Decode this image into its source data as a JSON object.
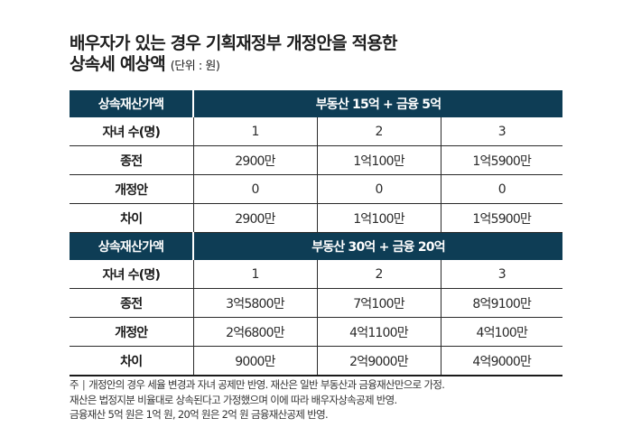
{
  "title": {
    "line1": "배우자가 있는 경우 기획재정부 개정안을 적용한",
    "line2": "상속세 예상액",
    "unit": "(단위 : 원)"
  },
  "tables": [
    {
      "header_label": "상속재산가액",
      "header_value": "부동산 15억 + 금융 5억",
      "rows": [
        {
          "label": "자녀 수(명)",
          "values": [
            "1",
            "2",
            "3"
          ]
        },
        {
          "label": "종전",
          "values": [
            "2900만",
            "1억100만",
            "1억5900만"
          ]
        },
        {
          "label": "개정안",
          "values": [
            "0",
            "0",
            "0"
          ]
        },
        {
          "label": "차이",
          "values": [
            "2900만",
            "1억100만",
            "1억5900만"
          ]
        }
      ]
    },
    {
      "header_label": "상속재산가액",
      "header_value": "부동산 30억 + 금융 20억",
      "rows": [
        {
          "label": "자녀 수(명)",
          "values": [
            "1",
            "2",
            "3"
          ]
        },
        {
          "label": "종전",
          "values": [
            "3억5800만",
            "7억100만",
            "8억9100만"
          ]
        },
        {
          "label": "개정안",
          "values": [
            "2억6800만",
            "4억1100만",
            "4억100만"
          ]
        },
        {
          "label": "차이",
          "values": [
            "9000만",
            "2억9000만",
            "4억9000만"
          ]
        }
      ]
    }
  ],
  "note": {
    "prefix": "주",
    "separator": "|",
    "line1": "개정안의 경우 세율 변경과 자녀 공제만 반영. 재산은 일반 부동산과 금융재산만으로 가정.",
    "line2": "재산은 법정지분 비율대로 상속된다고 가정했으며 이에 따라 배우자상속공제 반영.",
    "line3": "금융재산 5억 원은 1억 원, 20억 원은 2억 원 금융재산공제 반영."
  },
  "colors": {
    "header_bg": "#0e3d55",
    "header_text": "#ffffff",
    "rule": "#2a2a2a"
  }
}
